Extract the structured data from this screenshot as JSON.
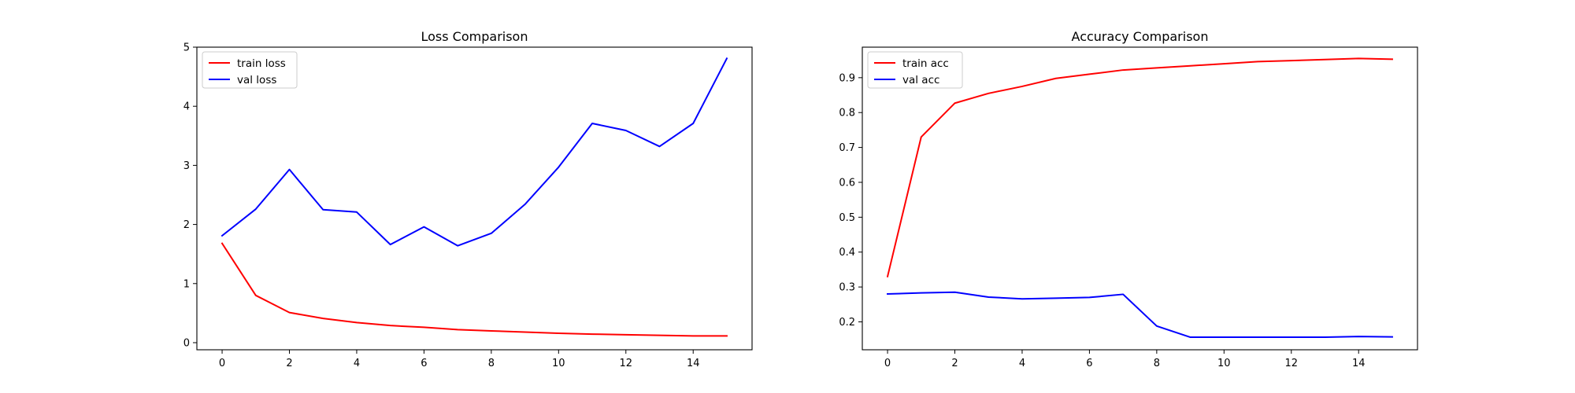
{
  "chart_data": [
    {
      "type": "line",
      "title": "Loss Comparison",
      "xlabel": "",
      "ylabel": "",
      "x": [
        0,
        1,
        2,
        3,
        4,
        5,
        6,
        7,
        8,
        9,
        10,
        11,
        12,
        13,
        14,
        15
      ],
      "xlim": [
        -0.75,
        15.75
      ],
      "ylim": [
        -0.12,
        5.0
      ],
      "xticks": [
        0,
        2,
        4,
        6,
        8,
        10,
        12,
        14
      ],
      "yticks": [
        0,
        1,
        2,
        3,
        4,
        5
      ],
      "xtick_labels": [
        "0",
        "2",
        "4",
        "6",
        "8",
        "10",
        "12",
        "14"
      ],
      "ytick_labels": [
        "0",
        "1",
        "2",
        "3",
        "4",
        "5"
      ],
      "grid": false,
      "legend_position": "upper-left",
      "series": [
        {
          "name": "train loss",
          "color": "#ff0000",
          "values": [
            1.68,
            0.8,
            0.51,
            0.41,
            0.34,
            0.29,
            0.26,
            0.22,
            0.2,
            0.18,
            0.16,
            0.145,
            0.135,
            0.125,
            0.115,
            0.115
          ]
        },
        {
          "name": "val loss",
          "color": "#0000ff",
          "values": [
            1.81,
            2.26,
            2.93,
            2.25,
            2.21,
            1.66,
            1.96,
            1.64,
            1.85,
            2.34,
            2.97,
            3.71,
            3.59,
            3.32,
            3.71,
            4.81
          ]
        }
      ]
    },
    {
      "type": "line",
      "title": "Accuracy Comparison",
      "xlabel": "",
      "ylabel": "",
      "x": [
        0,
        1,
        2,
        3,
        4,
        5,
        6,
        7,
        8,
        9,
        10,
        11,
        12,
        13,
        14,
        15
      ],
      "xlim": [
        -0.75,
        15.75
      ],
      "ylim": [
        0.12,
        0.9875
      ],
      "xticks": [
        0,
        2,
        4,
        6,
        8,
        10,
        12,
        14
      ],
      "yticks": [
        0.2,
        0.3,
        0.4,
        0.5,
        0.6,
        0.7,
        0.8,
        0.9
      ],
      "xtick_labels": [
        "0",
        "2",
        "4",
        "6",
        "8",
        "10",
        "12",
        "14"
      ],
      "ytick_labels": [
        "0.2",
        "0.3",
        "0.4",
        "0.5",
        "0.6",
        "0.7",
        "0.8",
        "0.9"
      ],
      "grid": false,
      "legend_position": "upper-left",
      "series": [
        {
          "name": "train acc",
          "color": "#ff0000",
          "values": [
            0.33,
            0.73,
            0.827,
            0.855,
            0.875,
            0.898,
            0.91,
            0.922,
            0.928,
            0.934,
            0.94,
            0.946,
            0.949,
            0.952,
            0.955,
            0.953
          ]
        },
        {
          "name": "val acc",
          "color": "#0000ff",
          "values": [
            0.28,
            0.283,
            0.285,
            0.271,
            0.266,
            0.268,
            0.27,
            0.279,
            0.188,
            0.156,
            0.156,
            0.156,
            0.156,
            0.156,
            0.158,
            0.157
          ]
        }
      ]
    }
  ]
}
